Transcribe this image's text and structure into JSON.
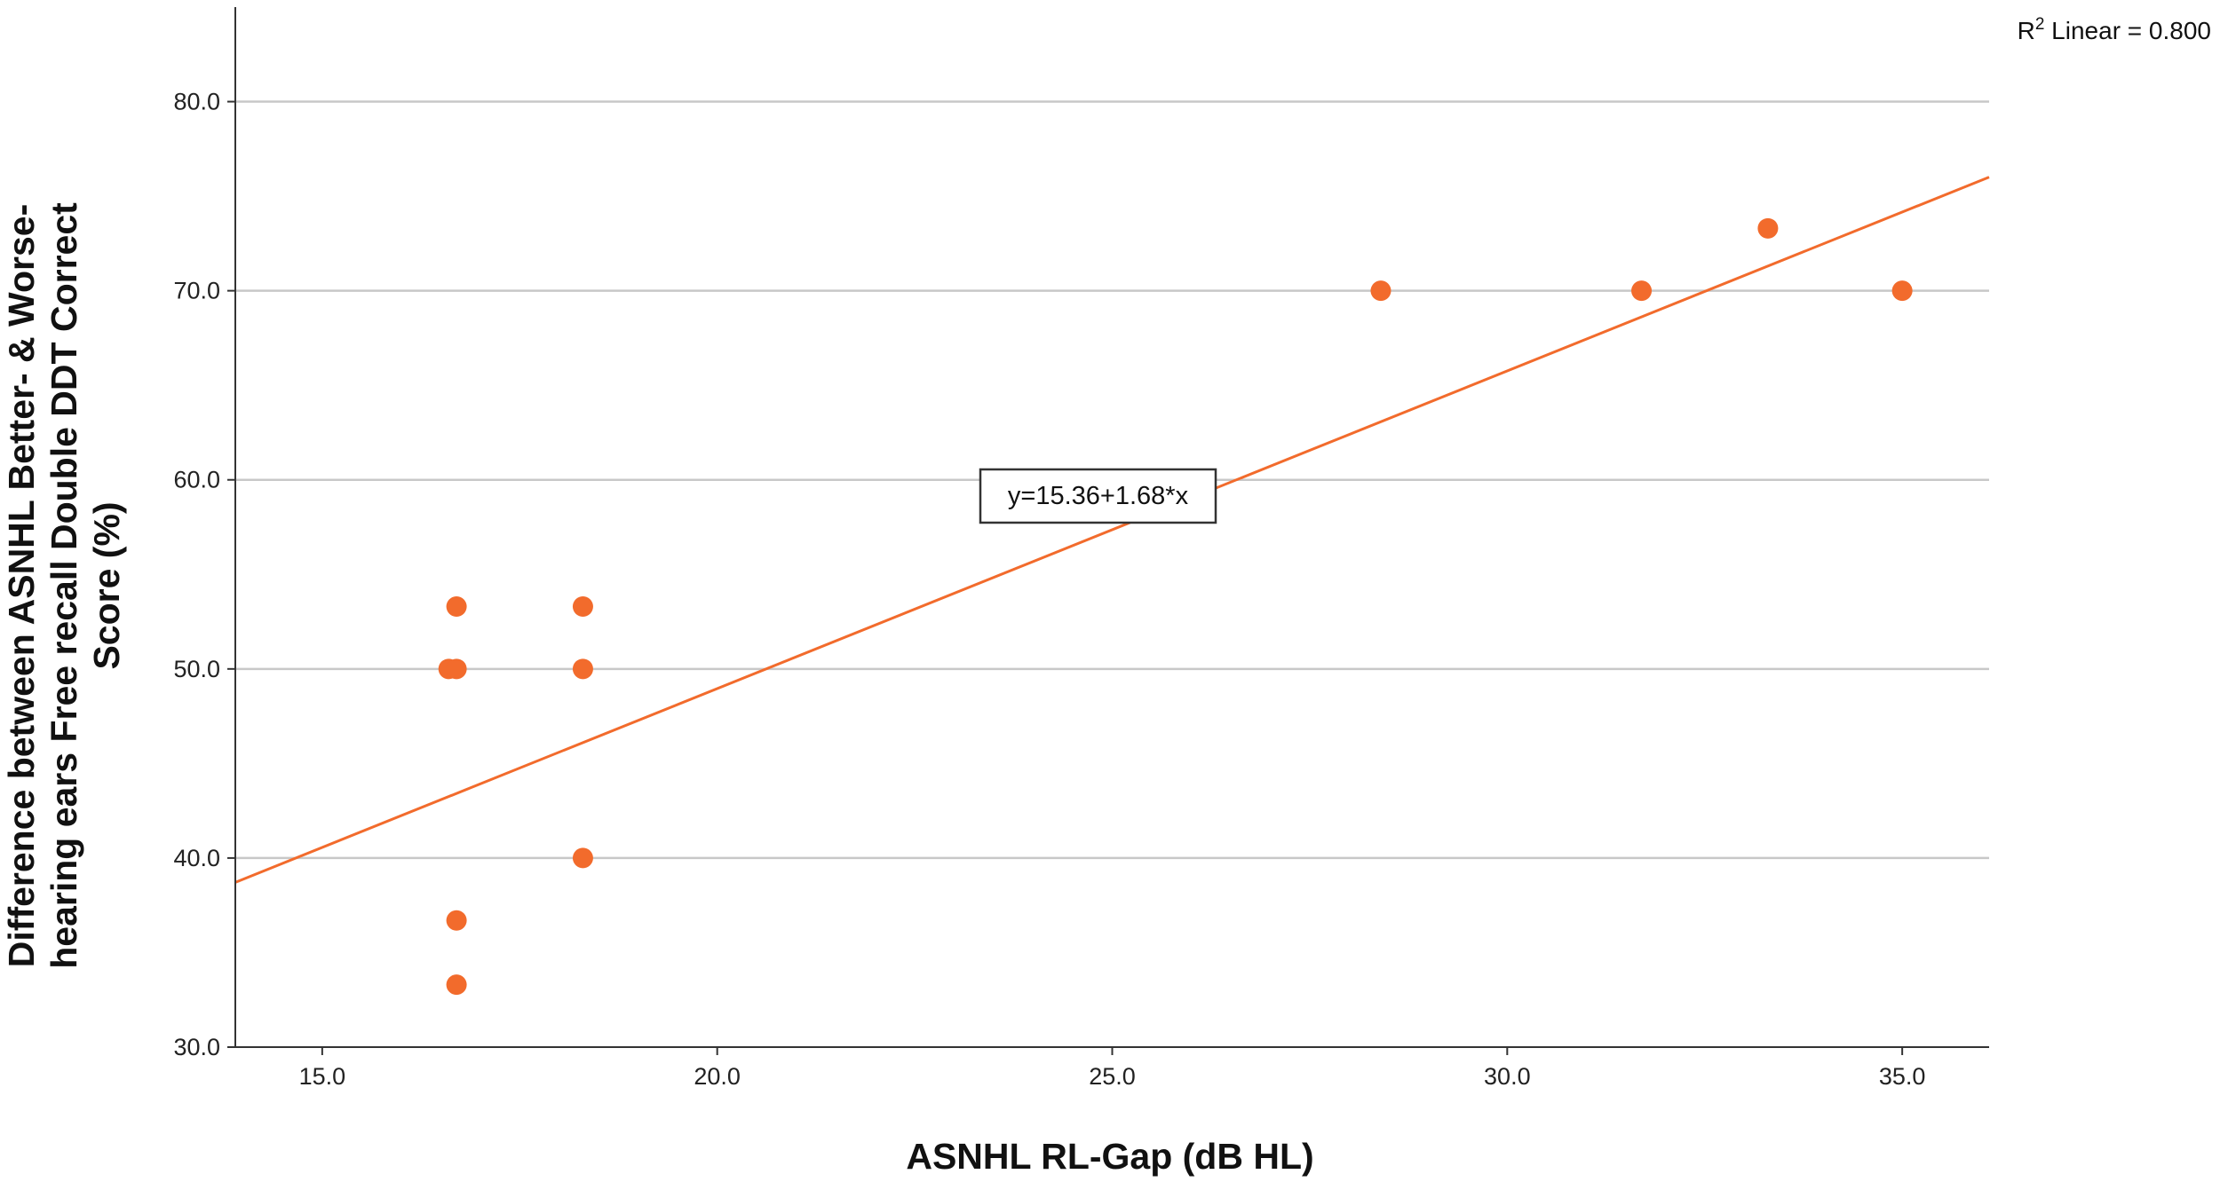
{
  "chart_data": {
    "type": "scatter",
    "title": "",
    "xlabel": "ASNHL RL-Gap (dB HL)",
    "ylabel_lines": [
      "Difference between ASNHL Better- & Worse-",
      "hearing ears Free recall Double DDT Correct",
      "Score (%)"
    ],
    "xlim": [
      13.9,
      36.1
    ],
    "ylim": [
      30.0,
      85.0
    ],
    "x_ticks": [
      15.0,
      20.0,
      25.0,
      30.0,
      35.0
    ],
    "x_tick_labels": [
      "15.0",
      "20.0",
      "25.0",
      "30.0",
      "35.0"
    ],
    "y_ticks": [
      30.0,
      40.0,
      50.0,
      60.0,
      70.0,
      80.0
    ],
    "y_tick_labels": [
      "30.0",
      "40.0",
      "50.0",
      "60.0",
      "70.0",
      "80.0"
    ],
    "grid": "horizontal",
    "marker_color": "#f26b2c",
    "line_color": "#f26b2c",
    "grid_color": "#c8c8c8",
    "points": [
      {
        "x": 16.6,
        "y": 50.0
      },
      {
        "x": 16.7,
        "y": 53.3
      },
      {
        "x": 16.7,
        "y": 50.0
      },
      {
        "x": 16.7,
        "y": 36.7
      },
      {
        "x": 16.7,
        "y": 33.3
      },
      {
        "x": 18.3,
        "y": 53.3
      },
      {
        "x": 18.3,
        "y": 50.0
      },
      {
        "x": 18.3,
        "y": 40.0
      },
      {
        "x": 28.4,
        "y": 70.0
      },
      {
        "x": 31.7,
        "y": 70.0
      },
      {
        "x": 33.3,
        "y": 73.3
      },
      {
        "x": 35.0,
        "y": 70.0
      }
    ],
    "fit": {
      "intercept": 15.36,
      "slope": 1.68,
      "x_range": [
        13.9,
        36.1
      ]
    },
    "fit_label": "y=15.36+1.68*x",
    "fit_label_anchor_x": 25.0,
    "r2_label_prefix": "R",
    "r2_label_sup": "2",
    "r2_label_suffix": " Linear = 0.800"
  }
}
